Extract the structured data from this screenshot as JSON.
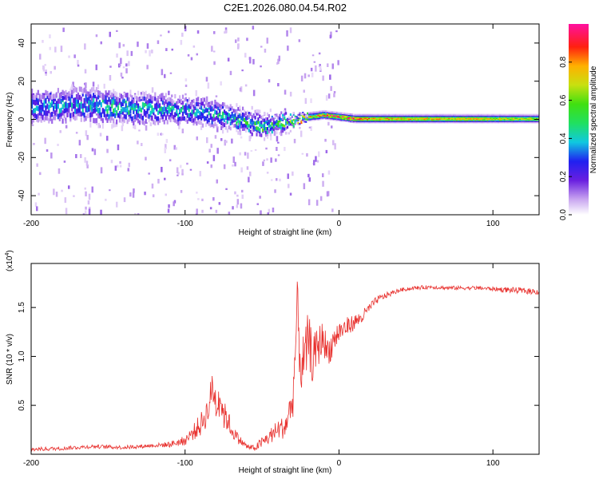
{
  "title": "C2E1.2026.080.04.54.R02",
  "chart_data": [
    {
      "type": "heatmap",
      "xlabel": "Height of straight line (km)",
      "ylabel": "Frequency (Hz)",
      "xlim": [
        -200,
        130
      ],
      "ylim": [
        -50,
        50
      ],
      "xticks": [
        {
          "v": -200,
          "label": "-200"
        },
        {
          "v": -100,
          "label": "-100"
        },
        {
          "v": 0,
          "label": "0"
        },
        {
          "v": 100,
          "label": "100"
        }
      ],
      "yticks": [
        {
          "v": 40,
          "label": "40"
        },
        {
          "v": 20,
          "label": "20"
        },
        {
          "v": 0,
          "label": "0"
        },
        {
          "v": -20,
          "label": "-20"
        },
        {
          "v": -40,
          "label": "-40"
        }
      ],
      "colorbar": {
        "label": "Normalized spectral amplitude",
        "range": [
          0,
          1
        ],
        "ticks": [
          {
            "v": 0.0,
            "label": "0.0"
          },
          {
            "v": 0.2,
            "label": "0.2"
          },
          {
            "v": 0.4,
            "label": "0.4"
          },
          {
            "v": 0.6,
            "label": "0.6"
          },
          {
            "v": 0.8,
            "label": "0.8"
          }
        ]
      },
      "ridge": {
        "x": [
          -200,
          -180,
          -160,
          -140,
          -120,
          -100,
          -90,
          -80,
          -70,
          -60,
          -50,
          -40,
          -30,
          -20,
          -10,
          0,
          10,
          20,
          40,
          60,
          80,
          100,
          130
        ],
        "freq": [
          7,
          8,
          8,
          6,
          6,
          5,
          4,
          3,
          1,
          -1,
          -3,
          -2,
          -1,
          1,
          2,
          1,
          0,
          0,
          0,
          0,
          0,
          0,
          0
        ],
        "spread": [
          9,
          9,
          9,
          8,
          8,
          7,
          7,
          7,
          6,
          6,
          6,
          5,
          3,
          2,
          2,
          2,
          2,
          2,
          2,
          2,
          2,
          2,
          2
        ],
        "amplitude": [
          0.35,
          0.4,
          0.4,
          0.45,
          0.4,
          0.38,
          0.4,
          0.4,
          0.45,
          0.5,
          0.55,
          0.5,
          0.6,
          0.85,
          0.9,
          0.95,
          0.9,
          0.85,
          0.8,
          0.8,
          0.8,
          0.75,
          0.7
        ]
      }
    },
    {
      "type": "line",
      "xlabel": "Height of straight line (km)",
      "ylabel": "SNR (10 * v/v)",
      "scale_label": "(x10",
      "scale_exp": "4",
      "scale_close": ")",
      "xlim": [
        -200,
        130
      ],
      "ylim": [
        0,
        1.95
      ],
      "xticks": [
        {
          "v": -200,
          "label": "-200"
        },
        {
          "v": -100,
          "label": "-100"
        },
        {
          "v": 0,
          "label": "0"
        },
        {
          "v": 100,
          "label": "100"
        }
      ],
      "yticks": [
        {
          "v": 0.5,
          "label": "0.5"
        },
        {
          "v": 1.0,
          "label": "1.0"
        },
        {
          "v": 1.5,
          "label": "1.5"
        }
      ],
      "series": [
        {
          "name": "SNR",
          "color": "#e8312e",
          "x": [
            -200,
            -180,
            -160,
            -140,
            -120,
            -110,
            -100,
            -95,
            -90,
            -85,
            -82,
            -80,
            -77,
            -75,
            -72,
            -70,
            -65,
            -60,
            -55,
            -50,
            -45,
            -40,
            -35,
            -30,
            -27,
            -25,
            -22,
            -20,
            -17,
            -15,
            -12,
            -10,
            -8,
            -5,
            -3,
            0,
            5,
            10,
            15,
            20,
            25,
            30,
            40,
            50,
            60,
            70,
            80,
            90,
            100,
            110,
            120,
            130
          ],
          "y": [
            0.05,
            0.06,
            0.08,
            0.07,
            0.09,
            0.1,
            0.14,
            0.22,
            0.3,
            0.45,
            0.7,
            0.52,
            0.6,
            0.4,
            0.35,
            0.25,
            0.15,
            0.08,
            0.06,
            0.12,
            0.18,
            0.25,
            0.28,
            0.55,
            1.5,
            0.9,
            0.95,
            1.2,
            0.95,
            1.05,
            1.15,
            1.2,
            1.05,
            1.1,
            1.18,
            1.25,
            1.3,
            1.35,
            1.4,
            1.5,
            1.58,
            1.62,
            1.68,
            1.7,
            1.71,
            1.7,
            1.7,
            1.7,
            1.69,
            1.68,
            1.67,
            1.66
          ],
          "noise": [
            0.02,
            0.02,
            0.02,
            0.02,
            0.02,
            0.03,
            0.05,
            0.08,
            0.12,
            0.15,
            0.2,
            0.2,
            0.2,
            0.15,
            0.12,
            0.08,
            0.05,
            0.03,
            0.03,
            0.06,
            0.08,
            0.1,
            0.12,
            0.2,
            0.3,
            0.3,
            0.3,
            0.28,
            0.25,
            0.22,
            0.2,
            0.18,
            0.15,
            0.15,
            0.15,
            0.12,
            0.1,
            0.08,
            0.07,
            0.05,
            0.04,
            0.03,
            0.02,
            0.02,
            0.02,
            0.02,
            0.02,
            0.02,
            0.02,
            0.03,
            0.03,
            0.03
          ]
        }
      ]
    }
  ]
}
